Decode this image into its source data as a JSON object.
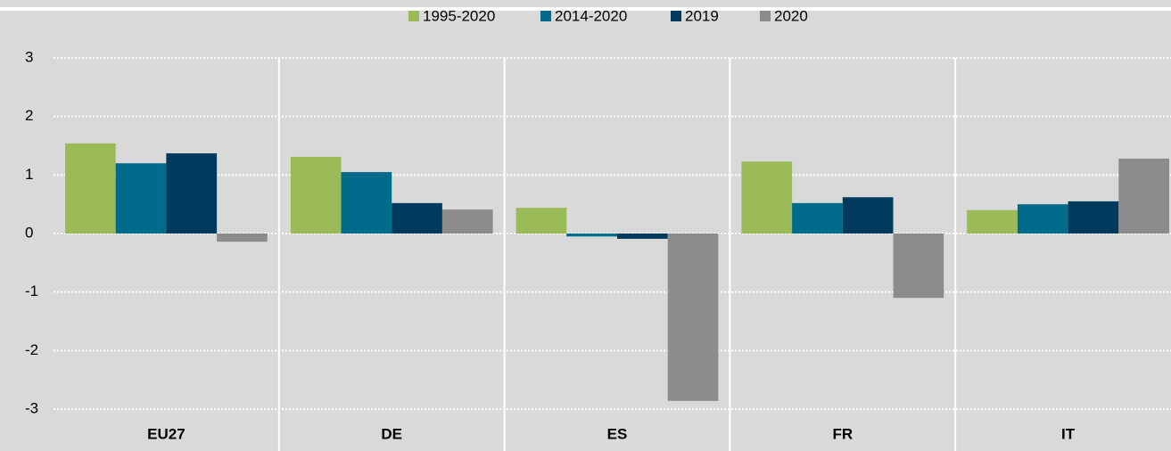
{
  "chart_data": {
    "type": "bar",
    "categories": [
      "EU27",
      "DE",
      "ES",
      "FR",
      "IT"
    ],
    "series": [
      {
        "name": "1995-2020",
        "color": "#9bbb59",
        "values": [
          1.54,
          1.31,
          0.44,
          1.23,
          0.4
        ]
      },
      {
        "name": "2014-2020",
        "color": "#006b8b",
        "values": [
          1.2,
          1.05,
          -0.05,
          0.52,
          0.5
        ]
      },
      {
        "name": "2019",
        "color": "#003a5c",
        "values": [
          1.37,
          0.52,
          -0.09,
          0.62,
          0.55
        ]
      },
      {
        "name": "2020",
        "color": "#8c8c8c",
        "values": [
          -0.14,
          0.41,
          -2.86,
          -1.1,
          1.28
        ]
      }
    ],
    "ylim": [
      -3,
      3
    ],
    "yticks": [
      -3,
      -2,
      -1,
      0,
      1,
      2,
      3
    ],
    "grid": true,
    "legend": "top"
  }
}
